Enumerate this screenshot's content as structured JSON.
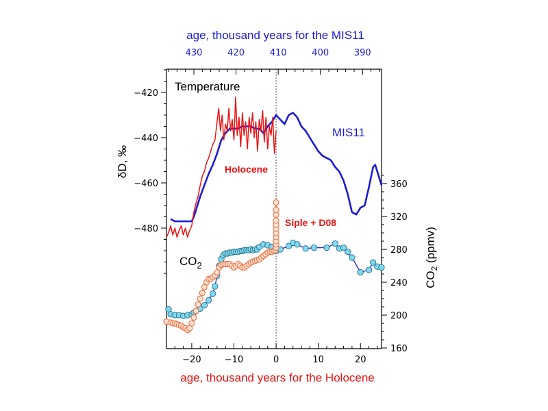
{
  "chart_data": {
    "type": "line",
    "annotations": {
      "temperature": "Temperature",
      "holocene": "Holocene",
      "mis11": "MIS11",
      "co2_prefix": "CO",
      "co2_sub": "2",
      "siple": "Siple + D08"
    },
    "axes": {
      "bottom": {
        "label": "age, thousand years for the Holocene",
        "range": [
          -26,
          25
        ],
        "ticks": [
          -20,
          -10,
          0,
          10,
          20
        ],
        "tick_labels": [
          "−20",
          "−10",
          "0",
          "10",
          "20"
        ]
      },
      "top": {
        "label": "age, thousand years for the MIS11",
        "range": [
          436.5,
          385.5
        ],
        "ticks": [
          430,
          420,
          410,
          400,
          390
        ],
        "tick_labels": [
          "430",
          "420",
          "410",
          "400",
          "390"
        ]
      },
      "left": {
        "label": "δD, ‰",
        "range": [
          -500,
          -410
        ],
        "ticks": [
          -420,
          -440,
          -460,
          -480
        ],
        "tick_labels": [
          "−420",
          "−440",
          "−460",
          "−480"
        ]
      },
      "right": {
        "label_prefix": "CO",
        "label_sub": "2",
        "label_suffix": " (ppmv)",
        "range": [
          160,
          380
        ],
        "ticks": [
          360,
          320,
          280,
          240,
          200,
          160
        ],
        "tick_labels": [
          "360",
          "320",
          "280",
          "240",
          "200",
          "160"
        ]
      }
    },
    "reference_line_x": 0,
    "colors": {
      "holocene": "#ee1111",
      "mis11": "#1a1adb",
      "axis": "#000000",
      "co2_mis11_fill": "#7fd8ee",
      "co2_holo_stroke": "#f07040",
      "co2_holo_fill": "#fbe2d2"
    },
    "series": [
      {
        "name": "Holocene",
        "axis": "left",
        "x": [
          -26,
          -25.5,
          -25,
          -24.5,
          -24,
          -23.5,
          -23,
          -22.5,
          -22,
          -21.5,
          -21,
          -20.5,
          -20,
          -19.5,
          -19,
          -18.5,
          -18,
          -17.5,
          -17,
          -16.5,
          -16,
          -15.5,
          -15,
          -14.5,
          -14,
          -13.6,
          -13.2,
          -12.8,
          -12.4,
          -12,
          -11.6,
          -11.2,
          -10.8,
          -10.4,
          -10,
          -9.6,
          -9.2,
          -8.8,
          -8.4,
          -8,
          -7.6,
          -7.2,
          -6.8,
          -6.4,
          -6,
          -5.6,
          -5.2,
          -4.8,
          -4.4,
          -4,
          -3.6,
          -3.2,
          -2.8,
          -2.4,
          -2,
          -1.6,
          -1.2,
          -0.8,
          -0.4,
          0
        ],
        "y": [
          -484,
          -482,
          -479,
          -483,
          -480,
          -484,
          -481,
          -479,
          -483,
          -480,
          -484,
          -481,
          -479,
          -473,
          -469,
          -466,
          -461,
          -457,
          -455,
          -451,
          -449,
          -446,
          -443,
          -441,
          -433,
          -427,
          -437,
          -430,
          -441,
          -434,
          -437,
          -427,
          -437,
          -432,
          -441,
          -422,
          -439,
          -431,
          -444,
          -429,
          -439,
          -433,
          -445,
          -431,
          -438,
          -429,
          -440,
          -433,
          -446,
          -432,
          -437,
          -428,
          -442,
          -431,
          -445,
          -435,
          -439,
          -431,
          -447,
          -437
        ]
      },
      {
        "name": "MIS11",
        "axis": "left",
        "x": [
          -25,
          -24,
          -22,
          -21,
          -20,
          -19.5,
          -19,
          -18,
          -17,
          -16,
          -15,
          -14,
          -13,
          -12,
          -11,
          -10,
          -9,
          -8,
          -7,
          -6,
          -5,
          -4,
          -3,
          -2,
          -1,
          0,
          1,
          2,
          3,
          4,
          5,
          6,
          7,
          8,
          9,
          10,
          11,
          12,
          13,
          14,
          15,
          16,
          17,
          18,
          19,
          20,
          21,
          22,
          23,
          23.5,
          24,
          25
        ],
        "y": [
          -476,
          -477,
          -477,
          -477,
          -477,
          -475,
          -472,
          -466,
          -461,
          -456,
          -452,
          -447,
          -441,
          -438,
          -436,
          -436,
          -436,
          -435,
          -435,
          -435,
          -436,
          -436,
          -438,
          -435,
          -433,
          -430,
          -432,
          -434,
          -430,
          -429,
          -431,
          -435,
          -437,
          -440,
          -443,
          -446,
          -448,
          -449,
          -450,
          -453,
          -455,
          -459,
          -465,
          -473,
          -474,
          -471,
          -470,
          -462,
          -453,
          -452,
          -455,
          -461
        ]
      },
      {
        "name": "",
        "axis": "right",
        "x": [
          -25.5,
          -25,
          -24,
          -23,
          -22,
          -21,
          -20,
          -19.5,
          -19,
          -18,
          -17,
          -16,
          -15,
          -14.5,
          -14,
          -13.5,
          -13,
          -12.5,
          -12,
          -11.5,
          -11,
          -10.5,
          -10,
          -9.5,
          -9,
          -8.5,
          -8,
          -7.5,
          -7,
          -6.5,
          -6,
          -5.5,
          -5,
          -4.5,
          -4,
          -3,
          -2,
          -1,
          0,
          1,
          3,
          4,
          5,
          7,
          9,
          12,
          14,
          15,
          16,
          17,
          18,
          20,
          22,
          23,
          24,
          25
        ],
        "y": [
          207,
          201,
          200,
          200,
          199,
          200,
          201,
          203,
          205,
          208,
          212,
          218,
          226,
          235,
          248,
          260,
          268,
          273,
          275,
          275,
          276,
          276,
          277,
          277,
          277,
          278,
          278,
          279,
          279,
          279,
          280,
          279,
          280,
          280,
          283,
          286,
          285,
          283,
          278,
          280,
          284,
          288,
          286,
          281,
          282,
          282,
          287,
          281,
          282,
          277,
          270,
          252,
          255,
          264,
          259,
          258
        ]
      },
      {
        "name": "Siple + D08",
        "axis": "right",
        "x": [
          -26,
          -25,
          -24.5,
          -24,
          -23.5,
          -23,
          -22.5,
          -22,
          -21.5,
          -21,
          -20.5,
          -20,
          -19.5,
          -19,
          -18.5,
          -18,
          -17.5,
          -17,
          -16.5,
          -16,
          -15.5,
          -15,
          -14.5,
          -14,
          -13.5,
          -13,
          -12.5,
          -12,
          -11.5,
          -11,
          -10.5,
          -10,
          -9.5,
          -9,
          -8.5,
          -8,
          -7.5,
          -7,
          -6.5,
          -6,
          -5.5,
          -5,
          -4.5,
          -4,
          -3.5,
          -3,
          -2.5,
          -2,
          -1.5,
          -1,
          -0.5,
          -0.2,
          0,
          0,
          0,
          0,
          0,
          0,
          0,
          0,
          0,
          0,
          0
        ],
        "y": [
          192,
          191,
          190,
          190,
          189,
          188,
          187,
          185,
          184,
          182,
          184,
          190,
          197,
          205,
          213,
          220,
          227,
          234,
          240,
          244,
          244,
          246,
          248,
          252,
          258,
          261,
          262,
          262,
          262,
          262,
          260,
          258,
          260,
          262,
          260,
          258,
          258,
          260,
          262,
          264,
          265,
          266,
          267,
          268,
          270,
          272,
          274,
          276,
          277,
          277,
          278,
          279,
          282,
          286,
          290,
          295,
          300,
          305,
          310,
          315,
          322,
          328,
          337
        ]
      }
    ]
  }
}
